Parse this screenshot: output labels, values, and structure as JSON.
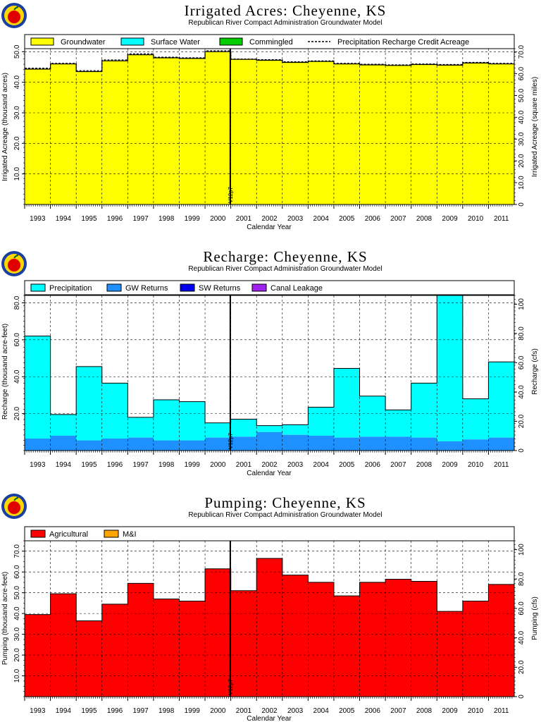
{
  "years": [
    "1993",
    "1994",
    "1995",
    "1996",
    "1997",
    "1998",
    "1999",
    "2000",
    "2001",
    "2002",
    "2003",
    "2004",
    "2005",
    "2006",
    "2007",
    "2008",
    "2009",
    "2010",
    "2011"
  ],
  "marker_label": "V12p7",
  "colors": {
    "groundwater": "#ffff00",
    "surface_water": "#00ffff",
    "commingled": "#00cc00",
    "precipitation": "#00ffff",
    "gw_returns": "#1e90ff",
    "sw_returns": "#0000ee",
    "canal_leakage": "#a020f0",
    "agricultural": "#ff0000",
    "mi": "#ffa500"
  },
  "chart_data": [
    {
      "type": "area",
      "title": "Irrigated Acres: Cheyenne, KS",
      "subtitle": "Republican River Compact Administration Groundwater Model",
      "xlabel": "Calendar Year",
      "ylabel": "Irrigated Acreage (thousand acres)",
      "ylabel_right": "Irrigated Acreage (square miles)",
      "ylim": [
        0,
        51
      ],
      "yticks": [
        "10.0",
        "20.0",
        "30.0",
        "40.0",
        "50.0"
      ],
      "yticks_right": [
        "0",
        "10.0",
        "20.0",
        "30.0",
        "40.0",
        "50.0",
        "60.0",
        "70.0"
      ],
      "legend": [
        "Groundwater",
        "Surface Water",
        "Commingled",
        "Precipitation Recharge Credit Acreage"
      ],
      "series": [
        {
          "name": "Groundwater",
          "values": [
            44.3,
            46.0,
            43.5,
            47.0,
            49.0,
            48.0,
            47.8,
            50.0,
            47.5,
            47.2,
            46.5,
            46.8,
            46.0,
            45.7,
            45.5,
            45.8,
            45.6,
            46.3,
            46.0
          ]
        },
        {
          "name": "Precipitation Recharge Credit Acreage",
          "values": [
            44.6,
            46.2,
            43.8,
            47.3,
            49.3,
            48.2,
            48.0,
            50.3,
            47.6,
            47.4,
            46.7,
            47.0,
            46.2,
            45.9,
            45.7,
            46.0,
            45.8,
            46.5,
            46.2
          ]
        }
      ]
    },
    {
      "type": "bar",
      "title": "Recharge: Cheyenne, KS",
      "subtitle": "Republican River Compact Administration Groundwater Model",
      "xlabel": "Calendar Year",
      "ylabel": "Recharge (thousand acre-feet)",
      "ylabel_right": "Recharge (cfs)",
      "ylim": [
        0,
        84
      ],
      "yticks": [
        "20.0",
        "40.0",
        "60.0",
        "80.0"
      ],
      "yticks_right": [
        "0",
        "20.0",
        "40.0",
        "60.0",
        "80.0",
        "100"
      ],
      "legend": [
        "Precipitation",
        "GW Returns",
        "SW Returns",
        "Canal Leakage"
      ],
      "series": [
        {
          "name": "GW Returns",
          "values": [
            6.5,
            8.0,
            5.5,
            6.5,
            7.0,
            5.5,
            5.5,
            7.0,
            7.5,
            10.0,
            8.5,
            8.0,
            7.0,
            7.5,
            7.5,
            7.0,
            5.0,
            6.0,
            7.0
          ]
        },
        {
          "name": "Precipitation",
          "values": [
            55.5,
            11.5,
            40.0,
            30.0,
            11.0,
            22.0,
            21.0,
            8.0,
            9.5,
            3.5,
            5.5,
            15.5,
            37.5,
            22.0,
            14.5,
            29.5,
            79.0,
            22.0,
            41.0
          ]
        }
      ]
    },
    {
      "type": "bar",
      "title": "Pumping: Cheyenne, KS",
      "subtitle": "Republican River Compact Administration Groundwater Model",
      "xlabel": "Calendar Year",
      "ylabel": "Pumping (thousand acre-feet)",
      "ylabel_right": "Pumping (cfs)",
      "ylim": [
        0,
        75
      ],
      "yticks": [
        "10.0",
        "20.0",
        "30.0",
        "40.0",
        "50.0",
        "60.0",
        "70.0"
      ],
      "yticks_right": [
        "0",
        "20.0",
        "40.0",
        "60.0",
        "80.0",
        "100"
      ],
      "legend": [
        "Agricultural",
        "M&I"
      ],
      "series": [
        {
          "name": "Agricultural",
          "values": [
            39.5,
            49.5,
            36.5,
            44.5,
            54.5,
            47.0,
            46.0,
            61.5,
            51.0,
            66.5,
            58.5,
            55.0,
            48.5,
            55.0,
            56.5,
            55.5,
            41.0,
            46.0,
            54.0
          ]
        },
        {
          "name": "M&I",
          "values": [
            0,
            0,
            0,
            0,
            0,
            0,
            0,
            0,
            0,
            0,
            0,
            0,
            0,
            0,
            0,
            0,
            0,
            0,
            0
          ]
        }
      ]
    }
  ]
}
